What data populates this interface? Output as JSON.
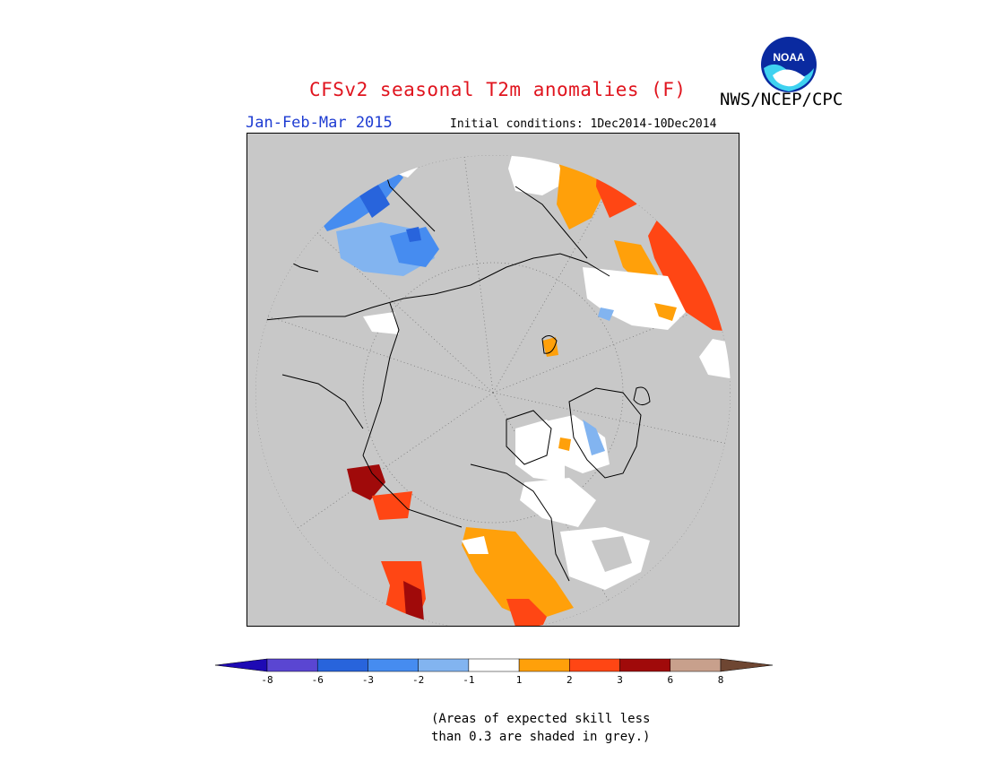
{
  "header": {
    "title": "CFSv2 seasonal T2m anomalies (F)",
    "agency": "NWS/NCEP/CPC",
    "logo_text": "NOAA",
    "season": "Jan-Feb-Mar 2015",
    "initial_conditions": "Initial conditions: 1Dec2014-10Dec2014"
  },
  "map": {
    "projection": "north polar stereographic",
    "background_color": "#c8c8c8",
    "coastline_color": "#000000",
    "graticule": "dotted"
  },
  "colorbar": {
    "tick_labels": [
      "-8",
      "-6",
      "-3",
      "-2",
      "-1",
      "1",
      "2",
      "3",
      "6",
      "8"
    ],
    "colors": [
      "#1e0ab4",
      "#5a46d2",
      "#2864dc",
      "#468cf0",
      "#82b4f0",
      "#ffffff",
      "#ffa00a",
      "#ff4614",
      "#a00a0a",
      "#c8a08c",
      "#6e4632"
    ]
  },
  "note": {
    "line1": "(Areas of expected skill less",
    "line2": "than 0.3 are shaded in grey.)"
  }
}
